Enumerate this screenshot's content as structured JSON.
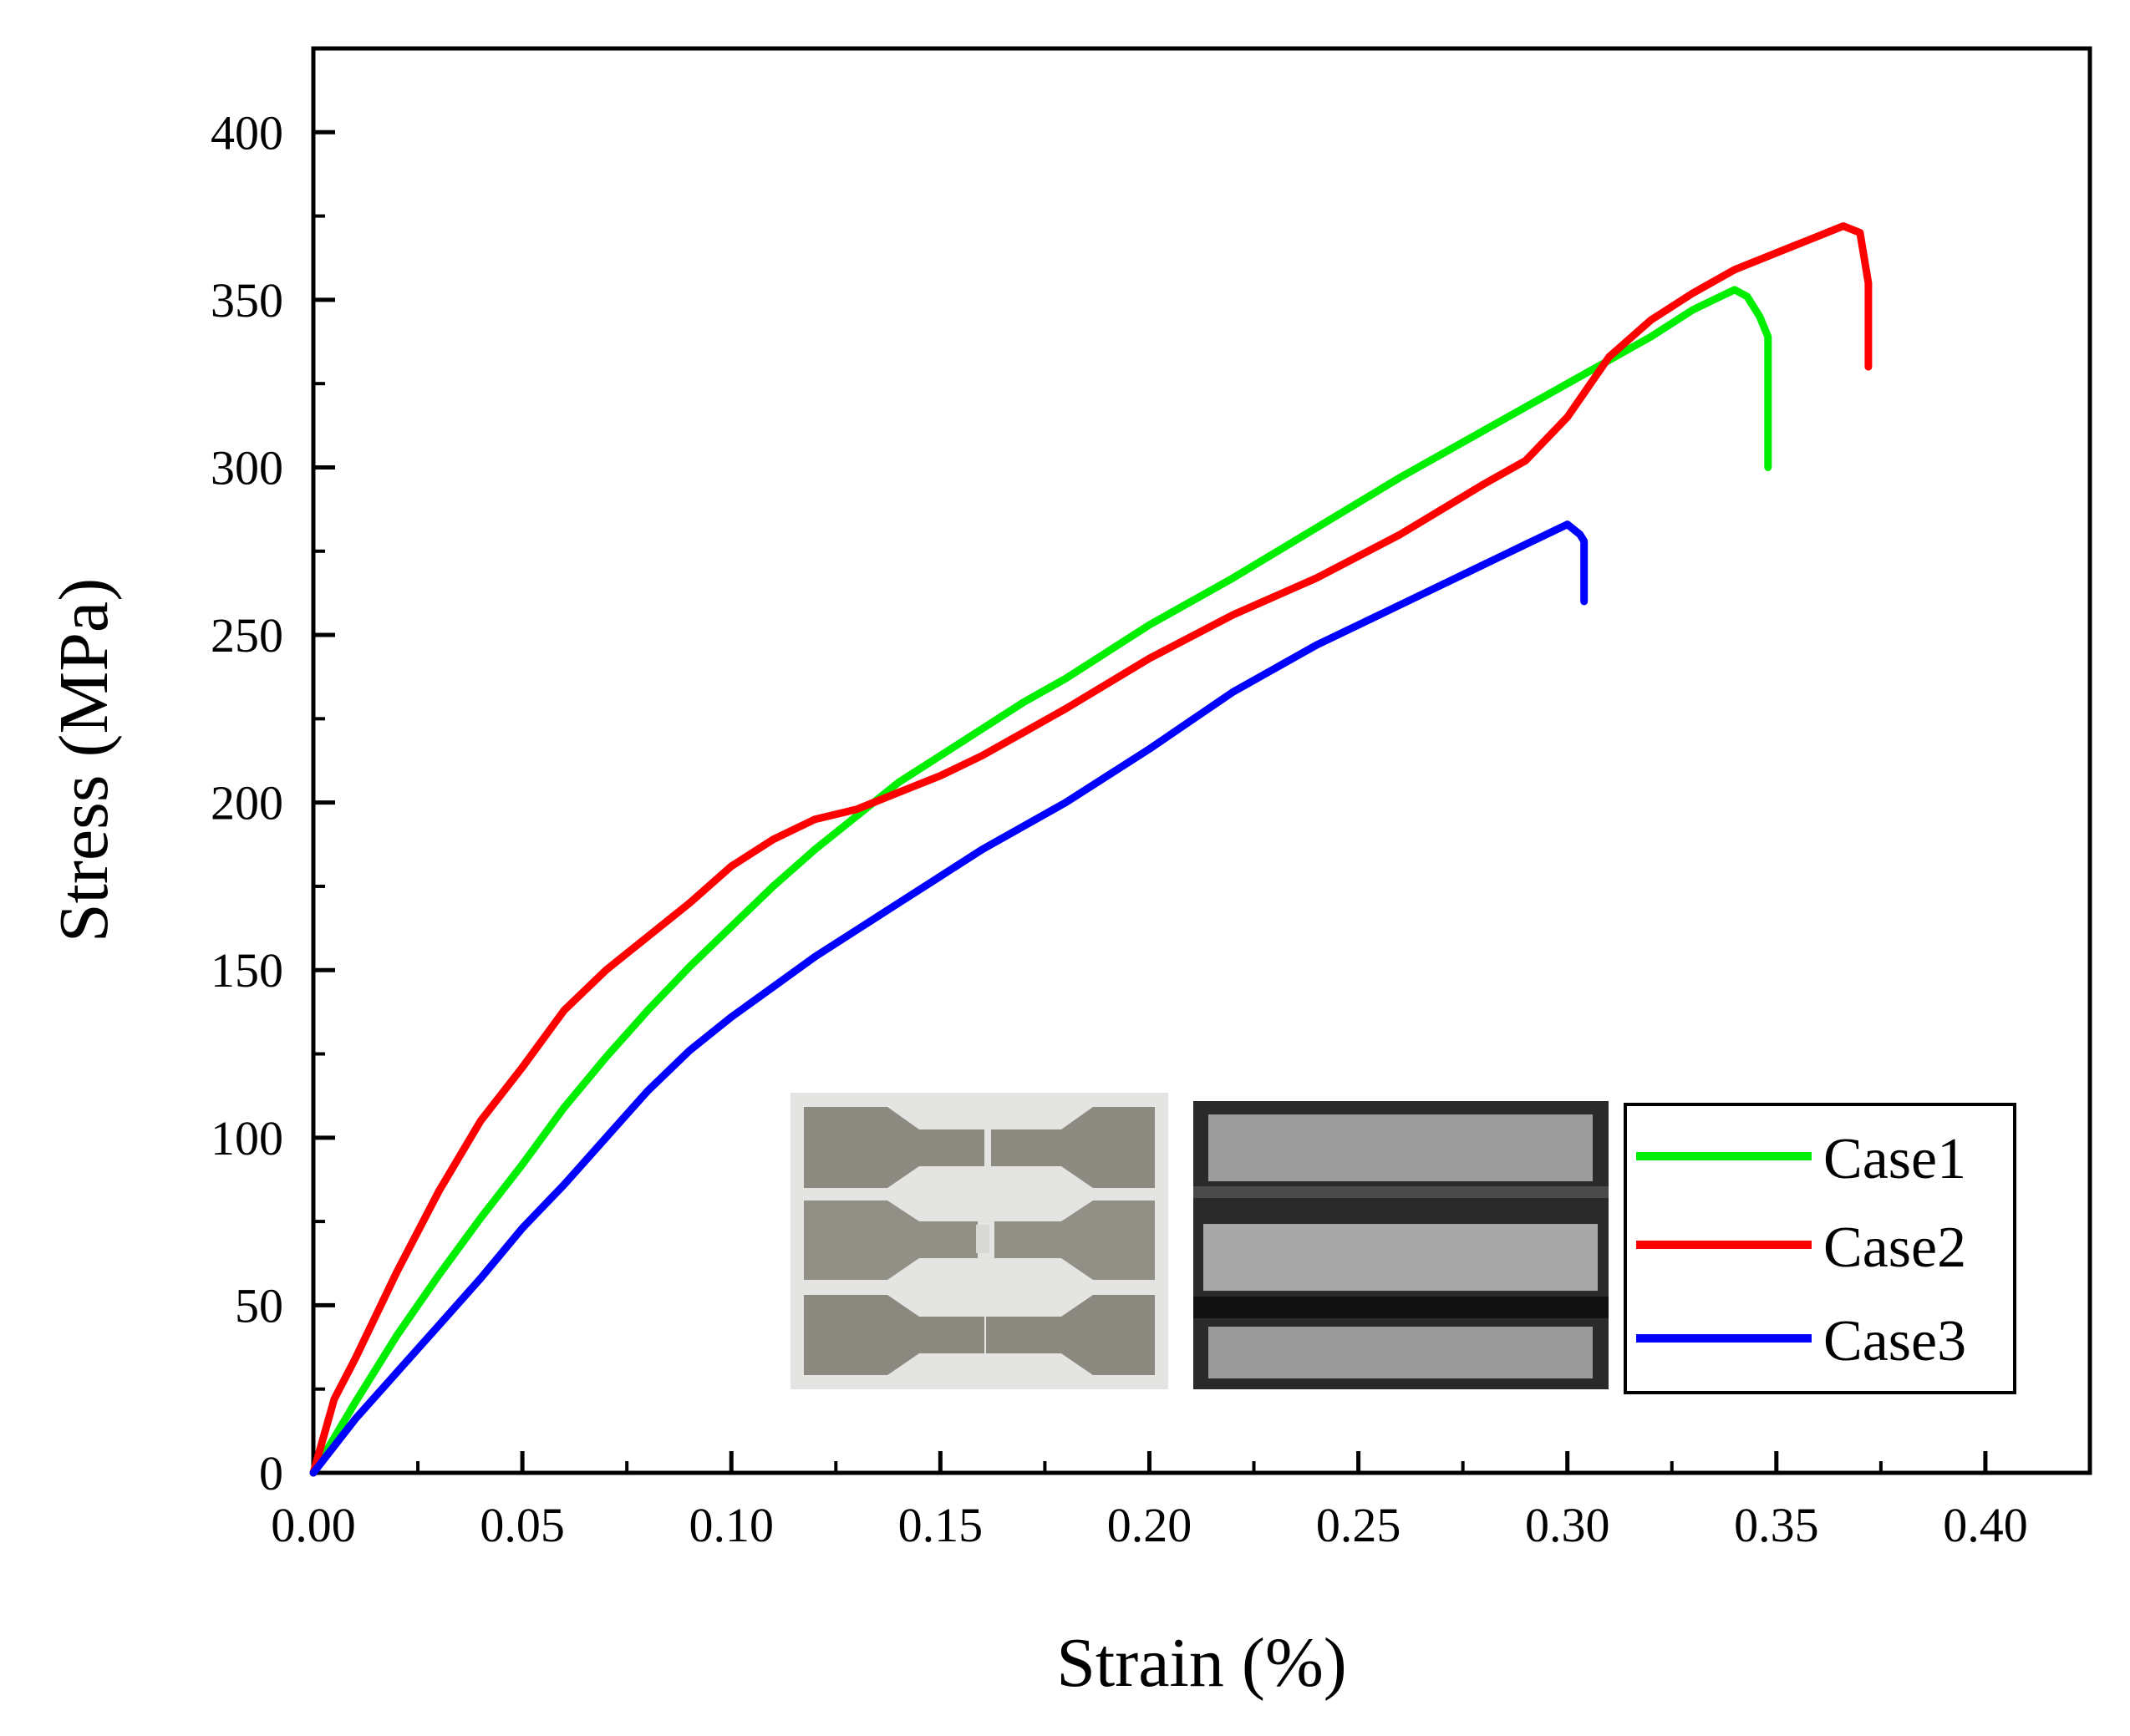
{
  "chart_data": {
    "type": "line",
    "title": "",
    "xlabel": "Strain (%)",
    "ylabel": "Stress (MPa)",
    "xlim": [
      0,
      0.425
    ],
    "ylim": [
      0,
      425
    ],
    "x_ticks": [
      0.0,
      0.05,
      0.1,
      0.15,
      0.2,
      0.25,
      0.3,
      0.35,
      0.4
    ],
    "x_tick_labels": [
      "0.00",
      "0.05",
      "0.10",
      "0.15",
      "0.20",
      "0.25",
      "0.30",
      "0.35",
      "0.40"
    ],
    "y_ticks": [
      0,
      50,
      100,
      150,
      200,
      250,
      300,
      350,
      400
    ],
    "y_tick_labels": [
      "0",
      "50",
      "100",
      "150",
      "200",
      "250",
      "300",
      "350",
      "400"
    ],
    "grid": false,
    "legend_position": "bottom-right",
    "series": [
      {
        "name": "Case1",
        "color": "#00ee00",
        "x": [
          0,
          0.01,
          0.02,
          0.03,
          0.04,
          0.05,
          0.06,
          0.07,
          0.08,
          0.09,
          0.1,
          0.11,
          0.12,
          0.13,
          0.14,
          0.15,
          0.16,
          0.17,
          0.18,
          0.19,
          0.2,
          0.22,
          0.24,
          0.26,
          0.28,
          0.3,
          0.32,
          0.33,
          0.34,
          0.343,
          0.346,
          0.348,
          0.348
        ],
        "y": [
          0,
          21,
          41,
          59,
          76,
          92,
          109,
          124,
          138,
          151,
          163,
          175,
          186,
          196,
          206,
          214,
          222,
          230,
          237,
          245,
          253,
          267,
          282,
          297,
          311,
          325,
          339,
          347,
          353,
          351,
          345,
          339,
          300
        ]
      },
      {
        "name": "Case2",
        "color": "#ff0000",
        "x": [
          0,
          0.005,
          0.01,
          0.02,
          0.03,
          0.04,
          0.05,
          0.06,
          0.07,
          0.08,
          0.09,
          0.1,
          0.11,
          0.12,
          0.13,
          0.14,
          0.15,
          0.16,
          0.17,
          0.18,
          0.2,
          0.22,
          0.24,
          0.26,
          0.28,
          0.29,
          0.3,
          0.31,
          0.32,
          0.33,
          0.34,
          0.35,
          0.36,
          0.366,
          0.37,
          0.372,
          0.372
        ],
        "y": [
          0,
          22,
          34,
          60,
          84,
          105,
          121,
          138,
          150,
          160,
          170,
          181,
          189,
          195,
          198,
          203,
          208,
          214,
          221,
          228,
          243,
          256,
          267,
          280,
          295,
          302,
          315,
          333,
          344,
          352,
          359,
          364,
          369,
          372,
          370,
          355,
          330
        ]
      },
      {
        "name": "Case3",
        "color": "#0000ff",
        "x": [
          0,
          0.01,
          0.02,
          0.03,
          0.04,
          0.05,
          0.06,
          0.07,
          0.08,
          0.09,
          0.1,
          0.11,
          0.12,
          0.13,
          0.14,
          0.15,
          0.16,
          0.17,
          0.18,
          0.19,
          0.2,
          0.22,
          0.24,
          0.26,
          0.28,
          0.29,
          0.3,
          0.303,
          0.304,
          0.304
        ],
        "y": [
          0,
          16,
          30,
          44,
          58,
          73,
          86,
          100,
          114,
          126,
          136,
          145,
          154,
          162,
          170,
          178,
          186,
          193,
          200,
          208,
          216,
          233,
          247,
          259,
          271,
          277,
          283,
          280,
          278,
          260
        ]
      }
    ]
  }
}
